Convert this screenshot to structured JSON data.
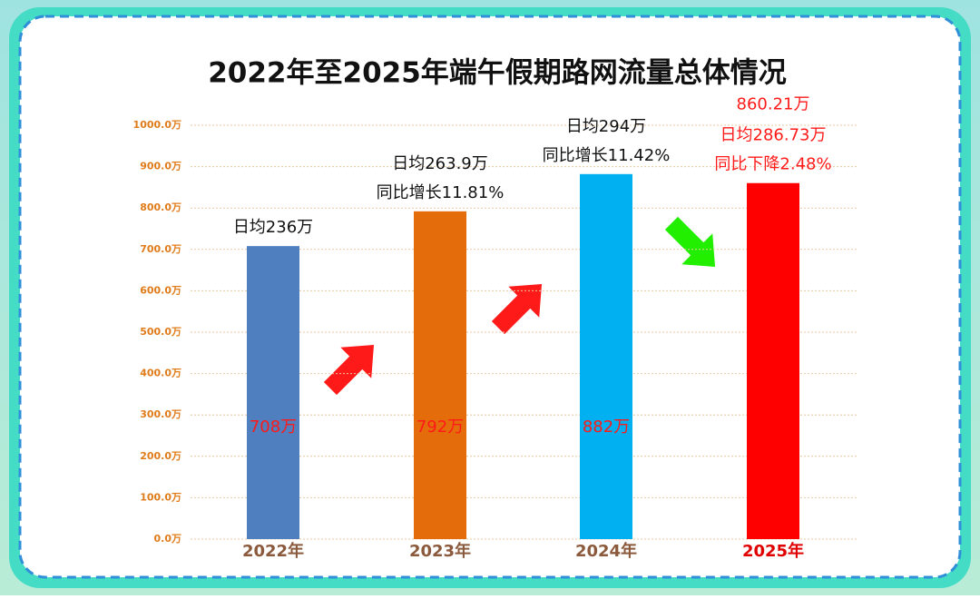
{
  "chart_data": {
    "type": "bar",
    "title": "2022年至2025年端午假期路网流量总体情况",
    "categories": [
      "2022年",
      "2023年",
      "2024年",
      "2025年"
    ],
    "values": [
      708,
      792,
      882,
      860.21
    ],
    "value_labels": [
      "708万",
      "792万",
      "882万",
      "860.21万"
    ],
    "value_label_placement": [
      "inside",
      "inside",
      "inside",
      "above"
    ],
    "value_label_color": "#ff1a1a",
    "colors": [
      "#4f7fbf",
      "#e46c0a",
      "#00b0f0",
      "#ff0000"
    ],
    "category_label_colors": [
      "#8b5a3c",
      "#8b5a3c",
      "#8b5a3c",
      "#e00000"
    ],
    "annotations": [
      [
        "日均236万"
      ],
      [
        "日均263.9万",
        "同比增长11.81%"
      ],
      [
        "日均294万",
        "同比增长11.42%"
      ],
      [
        "日均286.73万",
        "同比下降2.48%"
      ]
    ],
    "annotation_colors": [
      "#111111",
      "#111111",
      "#111111",
      "#ff1a1a"
    ],
    "ylim": [
      0,
      1000
    ],
    "yticks": [
      {
        "value": 0,
        "label": "0.0万"
      },
      {
        "value": 100,
        "label": "100.0万"
      },
      {
        "value": 200,
        "label": "200.0万"
      },
      {
        "value": 300,
        "label": "300.0万"
      },
      {
        "value": 400,
        "label": "400.0万"
      },
      {
        "value": 500,
        "label": "500.0万"
      },
      {
        "value": 600,
        "label": "600.0万"
      },
      {
        "value": 700,
        "label": "700.0万"
      },
      {
        "value": 800,
        "label": "800.0万"
      },
      {
        "value": 900,
        "label": "900.0万"
      },
      {
        "value": 1000,
        "label": "1000.0万"
      }
    ],
    "grid": true
  }
}
